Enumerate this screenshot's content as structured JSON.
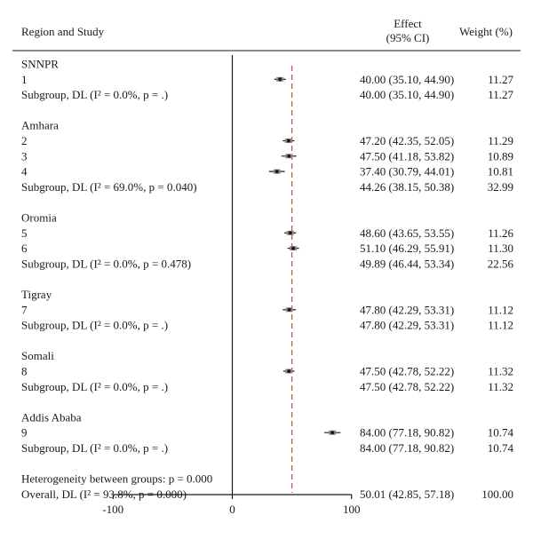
{
  "chart_data": {
    "type": "forest",
    "headers": {
      "study": "Region and Study",
      "effect_line1": "Effect",
      "effect_line2": "(95% CI)",
      "weight": "Weight (%)"
    },
    "xlim": [
      -165,
      165
    ],
    "xticks": [
      -100,
      0,
      100
    ],
    "xtick_labels": [
      "-100",
      "0",
      "100"
    ],
    "overall_line": 50.01,
    "colors": {
      "overall_line": "#b5452b",
      "marker": "#1a1a1a",
      "axis": "#1a1a1a"
    },
    "rows": [
      {
        "kind": "group",
        "label": "SNNPR"
      },
      {
        "kind": "study",
        "label": "1",
        "effect": 40.0,
        "lo": 35.1,
        "hi": 44.9,
        "ci_text": "40.00 (35.10, 44.90)",
        "weight": "11.27"
      },
      {
        "kind": "subgroup",
        "label": "Subgroup, DL (I² = 0.0%, p = .)",
        "ci_text": "40.00 (35.10, 44.90)",
        "weight": "11.27"
      },
      {
        "kind": "blank"
      },
      {
        "kind": "group",
        "label": "Amhara"
      },
      {
        "kind": "study",
        "label": "2",
        "effect": 47.2,
        "lo": 42.35,
        "hi": 52.05,
        "ci_text": "47.20 (42.35, 52.05)",
        "weight": "11.29"
      },
      {
        "kind": "study",
        "label": "3",
        "effect": 47.5,
        "lo": 41.18,
        "hi": 53.82,
        "ci_text": "47.50 (41.18, 53.82)",
        "weight": "10.89"
      },
      {
        "kind": "study",
        "label": "4",
        "effect": 37.4,
        "lo": 30.79,
        "hi": 44.01,
        "ci_text": "37.40 (30.79, 44.01)",
        "weight": "10.81"
      },
      {
        "kind": "subgroup",
        "label": "Subgroup, DL (I² = 69.0%, p = 0.040)",
        "ci_text": "44.26 (38.15, 50.38)",
        "weight": "32.99"
      },
      {
        "kind": "blank"
      },
      {
        "kind": "group",
        "label": "Oromia"
      },
      {
        "kind": "study",
        "label": "5",
        "effect": 48.6,
        "lo": 43.65,
        "hi": 53.55,
        "ci_text": "48.60 (43.65, 53.55)",
        "weight": "11.26"
      },
      {
        "kind": "study",
        "label": "6",
        "effect": 51.1,
        "lo": 46.29,
        "hi": 55.91,
        "ci_text": "51.10 (46.29, 55.91)",
        "weight": "11.30"
      },
      {
        "kind": "subgroup",
        "label": "Subgroup, DL (I² = 0.0%, p = 0.478)",
        "ci_text": "49.89 (46.44, 53.34)",
        "weight": "22.56"
      },
      {
        "kind": "blank"
      },
      {
        "kind": "group",
        "label": "Tigray"
      },
      {
        "kind": "study",
        "label": "7",
        "effect": 47.8,
        "lo": 42.29,
        "hi": 53.31,
        "ci_text": "47.80 (42.29, 53.31)",
        "weight": "11.12"
      },
      {
        "kind": "subgroup",
        "label": "Subgroup, DL (I² = 0.0%, p = .)",
        "ci_text": "47.80 (42.29, 53.31)",
        "weight": "11.12"
      },
      {
        "kind": "blank"
      },
      {
        "kind": "group",
        "label": "Somali"
      },
      {
        "kind": "study",
        "label": "8",
        "effect": 47.5,
        "lo": 42.78,
        "hi": 52.22,
        "ci_text": "47.50 (42.78, 52.22)",
        "weight": "11.32"
      },
      {
        "kind": "subgroup",
        "label": "Subgroup, DL (I² = 0.0%, p = .)",
        "ci_text": "47.50 (42.78, 52.22)",
        "weight": "11.32"
      },
      {
        "kind": "blank"
      },
      {
        "kind": "group",
        "label": "Addis Ababa"
      },
      {
        "kind": "study",
        "label": "9",
        "effect": 84.0,
        "lo": 77.18,
        "hi": 90.82,
        "ci_text": "84.00 (77.18, 90.82)",
        "weight": "10.74"
      },
      {
        "kind": "subgroup",
        "label": "Subgroup, DL (I² = 0.0%, p = .)",
        "ci_text": "84.00 (77.18, 90.82)",
        "weight": "10.74"
      },
      {
        "kind": "blank"
      },
      {
        "kind": "note",
        "label": "Heterogeneity between groups: p = 0.000"
      },
      {
        "kind": "overall",
        "label": "Overall, DL (I² = 93.8%, p = 0.000)",
        "ci_text": "50.01 (42.85, 57.18)",
        "weight": "100.00"
      }
    ]
  }
}
